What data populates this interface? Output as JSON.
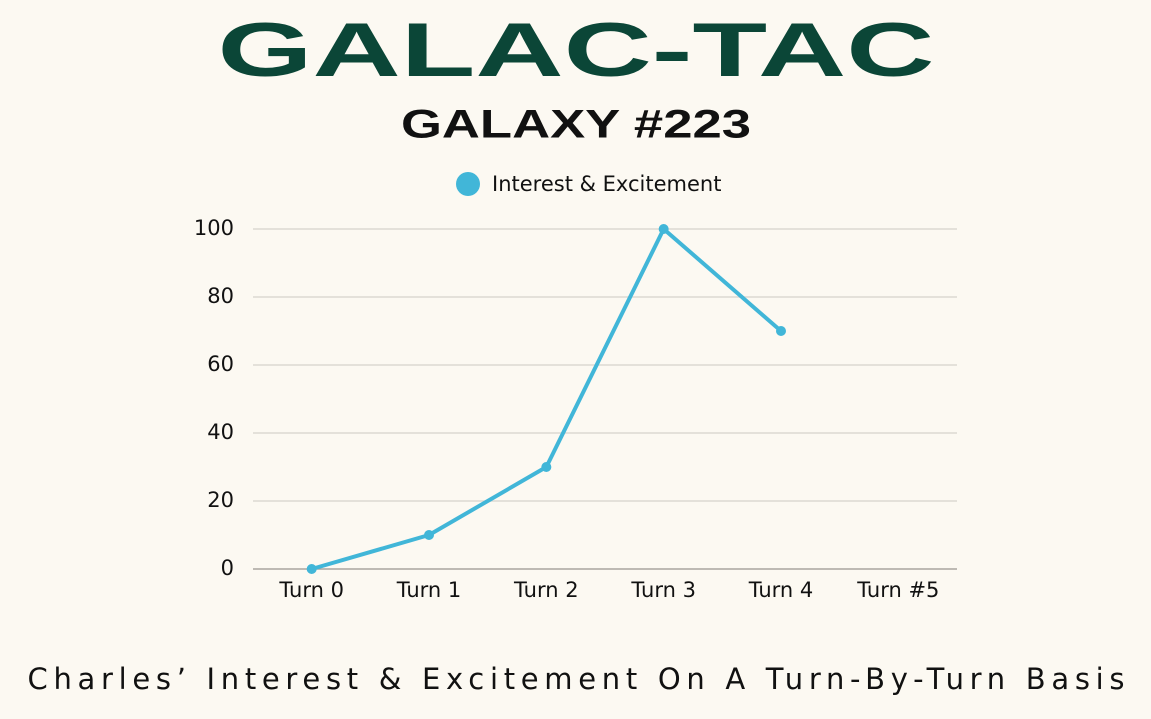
{
  "chart_data": {
    "type": "line",
    "title": "GALAC-TAC",
    "subtitle": "GALAXY #223",
    "caption": "Charles’ Interest & Excitement On A Turn-By-Turn Basis",
    "categories": [
      "Turn 0",
      "Turn 1",
      "Turn 2",
      "Turn 3",
      "Turn 4",
      "Turn #5"
    ],
    "series": [
      {
        "name": "Interest & Excitement",
        "color": "#41b6d8",
        "values": [
          0,
          10,
          30,
          100,
          70,
          null
        ]
      }
    ],
    "ylim": [
      0,
      100
    ],
    "yticks": [
      0,
      20,
      40,
      60,
      80,
      100
    ],
    "grid": true,
    "legend": "top"
  }
}
